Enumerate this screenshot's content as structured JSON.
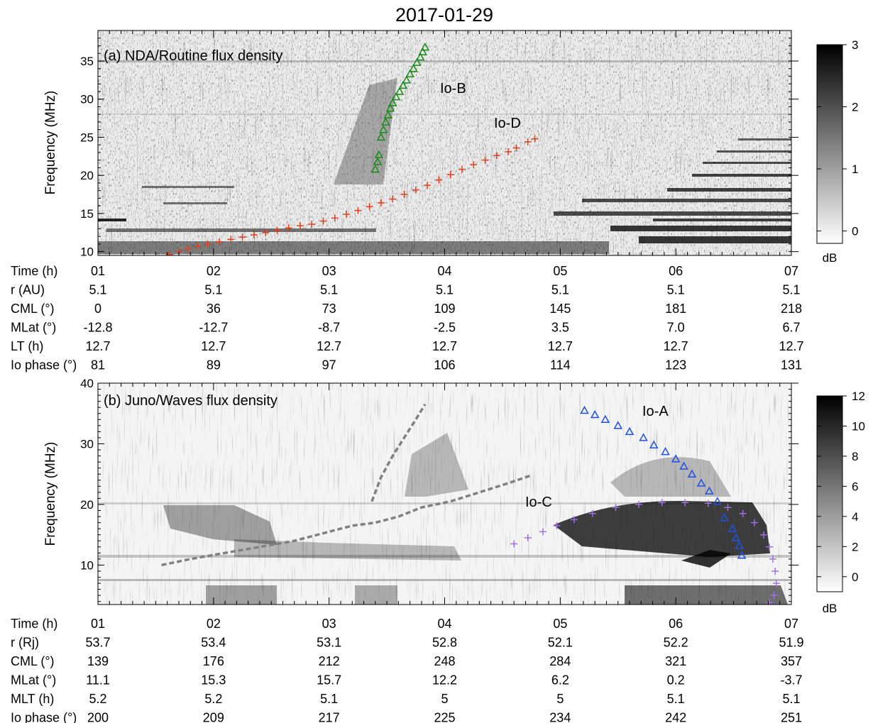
{
  "title": "2017-01-29",
  "chart_data": [
    {
      "type": "heatmap",
      "panel_label": "(a) NDA/Routine flux density",
      "ylabel": "Frequency (MHz)",
      "xlim": [
        1,
        7
      ],
      "ylim": [
        9.5,
        39
      ],
      "yticks": [
        10,
        15,
        20,
        25,
        30,
        35
      ],
      "colorbar": {
        "label": "dB",
        "range": [
          -0.2,
          3
        ],
        "ticks": [
          0,
          1,
          2,
          3
        ]
      },
      "annotations": [
        {
          "text": "Io-B",
          "x": 4.0,
          "y": 32.5
        },
        {
          "text": "Io-D",
          "x": 4.55,
          "y": 27
        }
      ],
      "series": [
        {
          "name": "Io-B",
          "marker": "triangle",
          "color": "#1a8a1a",
          "points": [
            [
              3.4,
              20.8
            ],
            [
              3.42,
              21.8
            ],
            [
              3.43,
              22.7
            ],
            [
              3.45,
              25.0
            ],
            [
              3.47,
              26.0
            ],
            [
              3.49,
              27.0
            ],
            [
              3.51,
              27.9
            ],
            [
              3.53,
              28.8
            ],
            [
              3.55,
              29.5
            ],
            [
              3.58,
              30.3
            ],
            [
              3.61,
              31.0
            ],
            [
              3.64,
              31.8
            ],
            [
              3.67,
              32.5
            ],
            [
              3.7,
              33.3
            ],
            [
              3.73,
              34.0
            ],
            [
              3.76,
              34.8
            ],
            [
              3.79,
              35.5
            ],
            [
              3.81,
              36.2
            ],
            [
              3.83,
              36.8
            ]
          ]
        },
        {
          "name": "Io-D",
          "marker": "plus",
          "color": "#e04020",
          "points": [
            [
              1.62,
              9.6
            ],
            [
              1.7,
              10.0
            ],
            [
              1.78,
              10.4
            ],
            [
              1.86,
              10.7
            ],
            [
              1.95,
              11.0
            ],
            [
              2.05,
              11.3
            ],
            [
              2.15,
              11.6
            ],
            [
              2.25,
              11.9
            ],
            [
              2.35,
              12.2
            ],
            [
              2.45,
              12.5
            ],
            [
              2.55,
              12.8
            ],
            [
              2.65,
              13.1
            ],
            [
              2.75,
              13.4
            ],
            [
              2.85,
              13.6
            ],
            [
              2.95,
              14.0
            ],
            [
              3.05,
              14.4
            ],
            [
              3.15,
              14.9
            ],
            [
              3.25,
              15.4
            ],
            [
              3.35,
              15.9
            ],
            [
              3.45,
              16.4
            ],
            [
              3.55,
              16.9
            ],
            [
              3.65,
              17.5
            ],
            [
              3.75,
              18.1
            ],
            [
              3.85,
              18.7
            ],
            [
              3.95,
              19.4
            ],
            [
              4.05,
              20.1
            ],
            [
              4.15,
              20.8
            ],
            [
              4.25,
              21.4
            ],
            [
              4.35,
              22.0
            ],
            [
              4.45,
              22.6
            ],
            [
              4.55,
              23.1
            ],
            [
              4.62,
              23.6
            ],
            [
              4.72,
              24.4
            ],
            [
              4.78,
              24.8
            ]
          ]
        }
      ],
      "table": {
        "rows": [
          {
            "label": "Time (h)",
            "values": [
              "01",
              "02",
              "03",
              "04",
              "05",
              "06",
              "07"
            ]
          },
          {
            "label": "r (AU)",
            "values": [
              "5.1",
              "5.1",
              "5.1",
              "5.1",
              "5.1",
              "5.1",
              "5.1"
            ]
          },
          {
            "label": "CML (°)",
            "values": [
              "0",
              "36",
              "73",
              "109",
              "145",
              "181",
              "218"
            ]
          },
          {
            "label": "MLat (°)",
            "values": [
              "-12.8",
              "-12.7",
              "-8.7",
              "-2.5",
              "3.5",
              "7.0",
              "6.7"
            ]
          },
          {
            "label": "LT (h)",
            "values": [
              "12.7",
              "12.7",
              "12.7",
              "12.7",
              "12.7",
              "12.7",
              "12.7"
            ]
          },
          {
            "label": "Io phase (°)",
            "values": [
              "81",
              "89",
              "97",
              "106",
              "114",
              "123",
              "131"
            ]
          }
        ]
      }
    },
    {
      "type": "heatmap",
      "panel_label": "(b) Juno/Waves flux density",
      "ylabel": "Frequency (MHz)",
      "xlim": [
        1,
        7
      ],
      "ylim": [
        3.5,
        40
      ],
      "yticks": [
        10,
        20,
        30,
        40
      ],
      "colorbar": {
        "label": "dB",
        "range": [
          -1,
          12
        ],
        "ticks": [
          0,
          2,
          4,
          6,
          8,
          10,
          12
        ]
      },
      "annotations": [
        {
          "text": "Io-A",
          "x": 5.85,
          "y": 34.5
        },
        {
          "text": "Io-C",
          "x": 4.85,
          "y": 22.0
        }
      ],
      "series": [
        {
          "name": "Io-A",
          "marker": "triangle",
          "color": "#2050e0",
          "points": [
            [
              5.21,
              35.5
            ],
            [
              5.3,
              34.8
            ],
            [
              5.39,
              34.0
            ],
            [
              5.5,
              33.0
            ],
            [
              5.6,
              32.0
            ],
            [
              5.72,
              31.0
            ],
            [
              5.81,
              29.8
            ],
            [
              5.91,
              28.7
            ],
            [
              6.0,
              27.5
            ],
            [
              6.07,
              26.3
            ],
            [
              6.14,
              25.0
            ],
            [
              6.22,
              23.5
            ],
            [
              6.29,
              22.2
            ],
            [
              6.36,
              20.5
            ],
            [
              6.42,
              17.8
            ],
            [
              6.49,
              16.0
            ],
            [
              6.52,
              14.5
            ],
            [
              6.55,
              13.2
            ],
            [
              6.57,
              11.6
            ]
          ]
        },
        {
          "name": "Io-C",
          "marker": "plus",
          "color": "#a070e0",
          "points": [
            [
              4.6,
              13.5
            ],
            [
              4.72,
              14.5
            ],
            [
              4.85,
              15.5
            ],
            [
              4.97,
              16.5
            ],
            [
              5.12,
              17.5
            ],
            [
              5.28,
              18.5
            ],
            [
              5.48,
              19.5
            ],
            [
              5.68,
              20.0
            ],
            [
              5.88,
              20.3
            ],
            [
              6.08,
              20.3
            ],
            [
              6.28,
              20.2
            ],
            [
              6.45,
              19.5
            ],
            [
              6.58,
              18.5
            ],
            [
              6.68,
              17.0
            ],
            [
              6.76,
              15.0
            ],
            [
              6.81,
              13.0
            ],
            [
              6.84,
              11.0
            ],
            [
              6.86,
              9.0
            ],
            [
              6.87,
              7.0
            ],
            [
              6.85,
              5.0
            ],
            [
              6.81,
              3.8
            ]
          ]
        },
        {
          "name": "",
          "marker": "dashed",
          "color": "#808080",
          "points": [
            [
              1.55,
              10.0
            ],
            [
              1.8,
              11.0
            ],
            [
              2.1,
              12.0
            ],
            [
              2.4,
              13.0
            ],
            [
              2.7,
              14.0
            ],
            [
              3.0,
              15.5
            ],
            [
              3.2,
              16.5
            ],
            [
              3.4,
              17.0
            ],
            [
              3.6,
              18.0
            ],
            [
              3.8,
              19.5
            ],
            [
              4.05,
              20.5
            ],
            [
              4.3,
              22.0
            ],
            [
              4.55,
              23.5
            ],
            [
              4.75,
              24.8
            ]
          ]
        },
        {
          "name": "",
          "marker": "dashed",
          "color": "#808080",
          "points": [
            [
              3.37,
              20.5
            ],
            [
              3.45,
              24.5
            ],
            [
              3.55,
              28.0
            ],
            [
              3.65,
              31.0
            ],
            [
              3.75,
              34.0
            ],
            [
              3.83,
              36.5
            ]
          ]
        }
      ],
      "table": {
        "rows": [
          {
            "label": "Time (h)",
            "values": [
              "01",
              "02",
              "03",
              "04",
              "05",
              "06",
              "07"
            ]
          },
          {
            "label": "r (Rj)",
            "values": [
              "53.7",
              "53.4",
              "53.1",
              "52.8",
              "52.1",
              "52.2",
              "51.9"
            ]
          },
          {
            "label": "CML (°)",
            "values": [
              "139",
              "176",
              "212",
              "248",
              "284",
              "321",
              "357"
            ]
          },
          {
            "label": "MLat (°)",
            "values": [
              "11.1",
              "15.3",
              "15.7",
              "12.2",
              "6.2",
              "0.2",
              "-3.7"
            ]
          },
          {
            "label": "MLT (h)",
            "values": [
              "5.2",
              "5.2",
              "5.1",
              "5",
              "5",
              "5.1",
              "5.1"
            ]
          },
          {
            "label": "Io phase (°)",
            "values": [
              "200",
              "209",
              "217",
              "225",
              "234",
              "242",
              "251"
            ]
          }
        ]
      }
    }
  ]
}
